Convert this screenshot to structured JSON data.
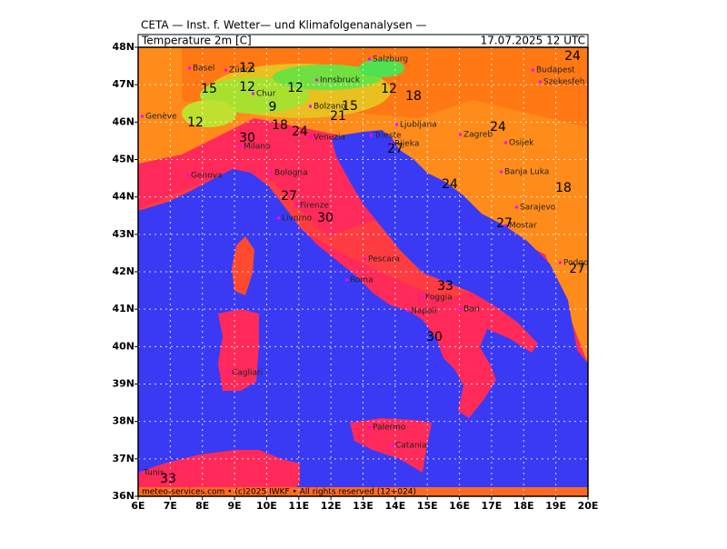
{
  "header": {
    "title": "CETA — Inst. f. Wetter— und Klimafolgenanalysen —",
    "variable": "Temperature  2m  [C]",
    "valid": "17.07.2025  12 UTC"
  },
  "footer": "meteo-services.com • (c)2025 IWKF • All rights reserved (12+024)",
  "map": {
    "xlim": [
      6,
      20
    ],
    "ylim": [
      36,
      48
    ],
    "xticks": [
      {
        "value": 6,
        "label": "6E"
      },
      {
        "value": 7,
        "label": "7E"
      },
      {
        "value": 8,
        "label": "8E"
      },
      {
        "value": 9,
        "label": "9E"
      },
      {
        "value": 10,
        "label": "10E"
      },
      {
        "value": 11,
        "label": "11E"
      },
      {
        "value": 12,
        "label": "12E"
      },
      {
        "value": 13,
        "label": "13E"
      },
      {
        "value": 14,
        "label": "14E"
      },
      {
        "value": 15,
        "label": "15E"
      },
      {
        "value": 16,
        "label": "16E"
      },
      {
        "value": 17,
        "label": "17E"
      },
      {
        "value": 18,
        "label": "18E"
      },
      {
        "value": 19,
        "label": "19E"
      },
      {
        "value": 20,
        "label": "20E"
      }
    ],
    "yticks": [
      {
        "value": 36,
        "label": "36N"
      },
      {
        "value": 37,
        "label": "37N"
      },
      {
        "value": 38,
        "label": "38N"
      },
      {
        "value": 39,
        "label": "39N"
      },
      {
        "value": 40,
        "label": "40N"
      },
      {
        "value": 41,
        "label": "41N"
      },
      {
        "value": 42,
        "label": "42N"
      },
      {
        "value": 43,
        "label": "43N"
      },
      {
        "value": 44,
        "label": "44N"
      },
      {
        "value": 45,
        "label": "45N"
      },
      {
        "value": 46,
        "label": "46N"
      },
      {
        "value": 47,
        "label": "47N"
      },
      {
        "value": 48,
        "label": "48N"
      }
    ],
    "cities": [
      "Basel",
      "Zürich",
      "Salzburg",
      "Innsbruck",
      "Chur",
      "Genève",
      "Bolzano",
      "Milano",
      "Venezia",
      "Trieste",
      "Ljubljana",
      "Zagreb",
      "Budapest",
      "Szekesfeh",
      "Genova",
      "Bologna",
      "Firenze",
      "Livorno",
      "Rijeka",
      "Banja Luka",
      "Sarajevo",
      "Mostar",
      "Podgorica",
      "Roma",
      "Pescara",
      "Foggia",
      "Napoli",
      "Bari",
      "Palermo",
      "Catania",
      "Tunis",
      "Cagliari",
      "Osijek"
    ],
    "contour_labels": [
      "24",
      "12",
      "15",
      "12",
      "12",
      "18",
      "9",
      "12",
      "15",
      "21",
      "18",
      "24",
      "30",
      "24",
      "27",
      "24",
      "18",
      "27",
      "30",
      "27",
      "33",
      "30",
      "27",
      "33",
      "12"
    ]
  }
}
